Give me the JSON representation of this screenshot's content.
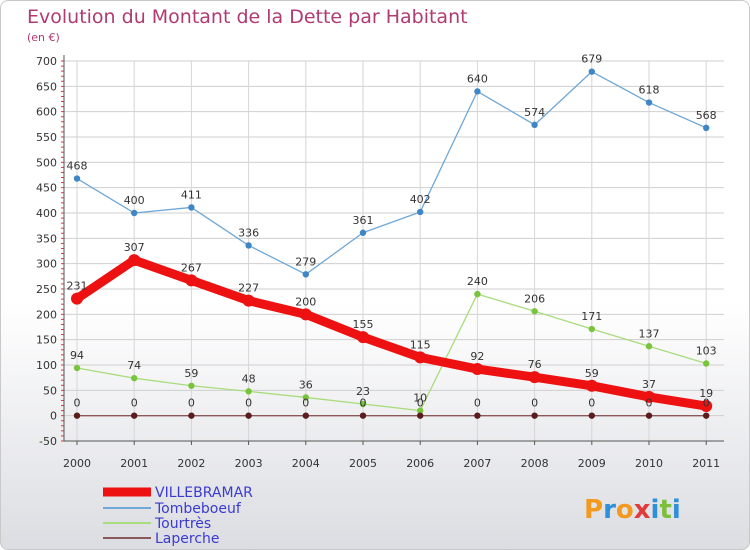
{
  "chart_data": {
    "type": "line",
    "title": "Evolution du Montant de la Dette par Habitant",
    "subtitle": "(en €)",
    "categories": [
      "2000",
      "2001",
      "2002",
      "2003",
      "2004",
      "2005",
      "2006",
      "2007",
      "2008",
      "2009",
      "2010",
      "2011"
    ],
    "ylim": [
      -50,
      700
    ],
    "yticks": [
      -50,
      0,
      50,
      100,
      150,
      200,
      250,
      300,
      350,
      400,
      450,
      500,
      550,
      600,
      650,
      700
    ],
    "grid": true,
    "legend_position": "bottom-left",
    "series": [
      {
        "name": "VILLEBRAMAR",
        "values": [
          231,
          307,
          267,
          227,
          200,
          155,
          115,
          92,
          76,
          59,
          37,
          19
        ],
        "color": "#ee1111",
        "width": 9,
        "marker": "#ee1111",
        "r": 6
      },
      {
        "name": "Tombeboeuf",
        "values": [
          468,
          400,
          411,
          336,
          279,
          361,
          402,
          640,
          574,
          679,
          618,
          568
        ],
        "color": "#6fa7d6",
        "width": 1.3,
        "marker": "#3f86c6",
        "r": 3.2
      },
      {
        "name": "Tourtrès",
        "values": [
          94,
          74,
          59,
          48,
          36,
          23,
          10,
          240,
          206,
          171,
          137,
          103
        ],
        "color": "#a9dc7c",
        "width": 1.3,
        "marker": "#78c43c",
        "r": 3.2
      },
      {
        "name": "Laperche",
        "values": [
          0,
          0,
          0,
          0,
          0,
          0,
          0,
          0,
          0,
          0,
          0,
          0
        ],
        "color": "#8a5a5a",
        "width": 1.3,
        "marker": "#5a1c1c",
        "r": 3.2
      }
    ]
  },
  "logo": {
    "text": "Proxiti",
    "letters": [
      "P",
      "r",
      "o",
      "x",
      "i",
      "t",
      "i"
    ],
    "colors": [
      "#f39a1e",
      "#2f8fd8",
      "#f39a1e",
      "#e23b3b",
      "#2f8fd8",
      "#7bbf3a",
      "#2f8fd8"
    ]
  }
}
